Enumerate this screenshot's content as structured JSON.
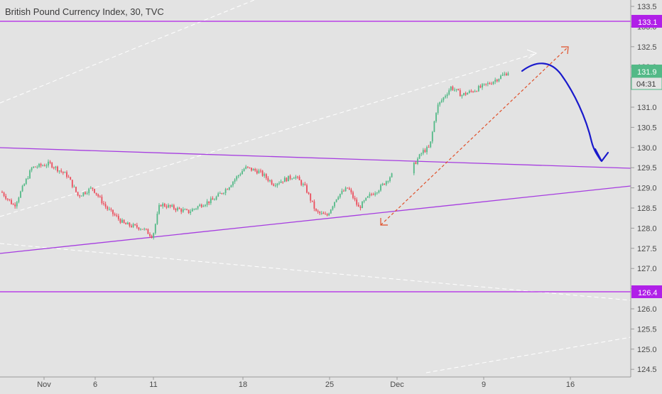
{
  "header": {
    "title": "British Pound Currency Index, 30, TVC"
  },
  "price_axis": {
    "ticks": [
      "133.5",
      "133.0",
      "132.5",
      "132.0",
      "131.5",
      "131.0",
      "130.5",
      "130.0",
      "129.5",
      "129.0",
      "128.5",
      "128.0",
      "127.5",
      "127.0",
      "126.5",
      "126.0",
      "125.5",
      "125.0",
      "124.5"
    ]
  },
  "badges": {
    "resistance": "133.1",
    "last_price": "131.9",
    "countdown": "04:31",
    "support": "126.4"
  },
  "time_axis": {
    "ticks": [
      "Nov",
      "6",
      "11",
      "18",
      "25",
      "Dec",
      "9",
      "16"
    ]
  },
  "colors": {
    "background": "#e3e3e3",
    "horizontal_level": "#b020e8",
    "triangle_line": "#a63de0",
    "up_candle": "#53b987",
    "down_candle": "#eb4d5c",
    "projection_arrow": "#e0502a",
    "forecast_curve": "#1a1acc",
    "last_price_badge": "#53b987",
    "level_badge": "#b020e8"
  },
  "chart_data": {
    "type": "candlestick",
    "title": "British Pound Currency Index, 30, TVC",
    "ylim": [
      124.35,
      133.65
    ],
    "x_ticks": [
      "Nov",
      "6",
      "11",
      "18",
      "25",
      "Dec",
      "9",
      "16"
    ],
    "grid": false,
    "horizontal_levels": [
      133.1,
      126.4
    ],
    "last_price": 131.9,
    "price_path": [
      [
        "Nov 1",
        128.9
      ],
      [
        "Nov 2",
        128.55
      ],
      [
        "Nov 3",
        129.5
      ],
      [
        "Nov 4",
        129.6
      ],
      [
        "Nov 5",
        129.3
      ],
      [
        "Nov 6",
        128.8
      ],
      [
        "Nov 7",
        129.0
      ],
      [
        "Nov 8",
        128.5
      ],
      [
        "Nov 9",
        128.1
      ],
      [
        "Nov 10",
        128.0
      ],
      [
        "Nov 11",
        127.8
      ],
      [
        "Nov 12",
        128.6
      ],
      [
        "Nov 13",
        128.5
      ],
      [
        "Nov 14",
        128.4
      ],
      [
        "Nov 15",
        128.6
      ],
      [
        "Nov 16",
        128.7
      ],
      [
        "Nov 17",
        129.0
      ],
      [
        "Nov 18",
        129.5
      ],
      [
        "Nov 19",
        129.4
      ],
      [
        "Nov 20",
        129.1
      ],
      [
        "Nov 21",
        129.2
      ],
      [
        "Nov 22",
        129.3
      ],
      [
        "Nov 23",
        129.0
      ],
      [
        "Nov 24",
        128.4
      ],
      [
        "Nov 25",
        128.3
      ],
      [
        "Nov 26",
        128.8
      ],
      [
        "Nov 27",
        129.0
      ],
      [
        "Nov 28",
        128.5
      ],
      [
        "Nov 29",
        128.8
      ],
      [
        "Nov 30",
        129.0
      ],
      [
        "Dec 1",
        129.3
      ],
      [
        "Dec 2",
        129.45
      ],
      [
        "Dec 3",
        129.5
      ],
      [
        "Dec 4",
        129.9
      ],
      [
        "Dec 5",
        130.0
      ],
      [
        "Dec 6",
        131.0
      ],
      [
        "Dec 7",
        131.5
      ],
      [
        "Dec 8",
        131.3
      ],
      [
        "Dec 9",
        131.4
      ],
      [
        "Dec 10",
        131.6
      ],
      [
        "Dec 11",
        131.9
      ]
    ]
  }
}
